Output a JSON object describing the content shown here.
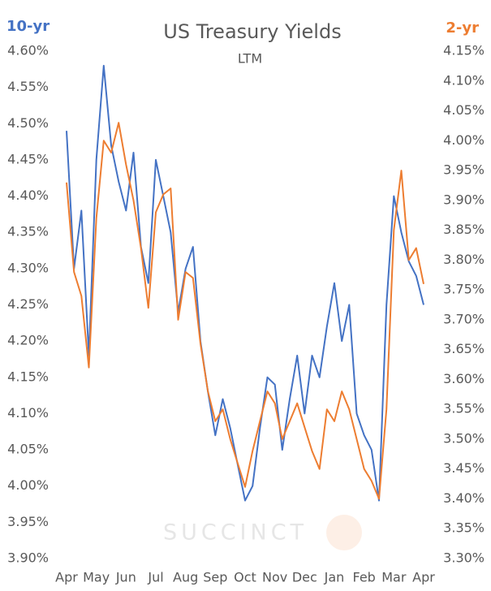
{
  "chart_data": {
    "type": "line",
    "title": "US Treasury Yields",
    "subtitle": "LTM",
    "y_axis_label": "10-yr",
    "y2_axis_label": "2-yr",
    "watermark": "SUCCINCT",
    "categories": [
      "Apr",
      null,
      null,
      null,
      "May",
      null,
      null,
      null,
      "Jun",
      null,
      null,
      null,
      "Jul",
      null,
      null,
      null,
      "Aug",
      null,
      null,
      null,
      "Sep",
      null,
      null,
      null,
      "Oct",
      null,
      null,
      null,
      "Nov",
      null,
      null,
      null,
      "Dec",
      null,
      null,
      null,
      "Jan",
      null,
      null,
      null,
      "Feb",
      null,
      null,
      null,
      "Mar",
      null,
      null,
      null,
      "Apr"
    ],
    "series": [
      {
        "name": "10-yr",
        "color": "#4472c4",
        "axis": "y",
        "values": [
          4.49,
          4.3,
          4.38,
          4.18,
          4.45,
          4.58,
          4.47,
          4.42,
          4.38,
          4.46,
          4.33,
          4.28,
          4.45,
          4.4,
          4.35,
          4.24,
          4.3,
          4.33,
          4.2,
          4.13,
          4.07,
          4.12,
          4.08,
          4.03,
          3.98,
          4.0,
          4.08,
          4.15,
          4.14,
          4.05,
          4.12,
          4.18,
          4.1,
          4.18,
          4.15,
          4.22,
          4.28,
          4.2,
          4.25,
          4.1,
          4.07,
          4.05,
          3.98,
          4.25,
          4.4,
          4.35,
          4.31,
          4.29,
          4.25
        ]
      },
      {
        "name": "2-yr",
        "color": "#ed7d31",
        "axis": "y2",
        "values": [
          3.93,
          3.78,
          3.74,
          3.62,
          3.87,
          4.0,
          3.98,
          4.03,
          3.96,
          3.9,
          3.82,
          3.72,
          3.88,
          3.91,
          3.92,
          3.7,
          3.78,
          3.77,
          3.66,
          3.58,
          3.53,
          3.55,
          3.5,
          3.46,
          3.42,
          3.48,
          3.53,
          3.58,
          3.56,
          3.5,
          3.53,
          3.56,
          3.52,
          3.48,
          3.45,
          3.55,
          3.53,
          3.58,
          3.55,
          3.5,
          3.45,
          3.43,
          3.4,
          3.55,
          3.85,
          3.95,
          3.8,
          3.82,
          3.76
        ]
      }
    ],
    "ylim": [
      3.9,
      4.6
    ],
    "yticks": [
      {
        "value": 3.9,
        "label": "3.90%"
      },
      {
        "value": 3.95,
        "label": "3.95%"
      },
      {
        "value": 4.0,
        "label": "4.00%"
      },
      {
        "value": 4.05,
        "label": "4.05%"
      },
      {
        "value": 4.1,
        "label": "4.10%"
      },
      {
        "value": 4.15,
        "label": "4.15%"
      },
      {
        "value": 4.2,
        "label": "4.20%"
      },
      {
        "value": 4.25,
        "label": "4.25%"
      },
      {
        "value": 4.3,
        "label": "4.30%"
      },
      {
        "value": 4.35,
        "label": "4.35%"
      },
      {
        "value": 4.4,
        "label": "4.40%"
      },
      {
        "value": 4.45,
        "label": "4.45%"
      },
      {
        "value": 4.5,
        "label": "4.50%"
      },
      {
        "value": 4.55,
        "label": "4.55%"
      },
      {
        "value": 4.6,
        "label": "4.60%"
      }
    ],
    "y2lim": [
      3.3,
      4.15
    ],
    "y2ticks": [
      {
        "value": 3.3,
        "label": "3.30%"
      },
      {
        "value": 3.35,
        "label": "3.35%"
      },
      {
        "value": 3.4,
        "label": "3.40%"
      },
      {
        "value": 3.45,
        "label": "3.45%"
      },
      {
        "value": 3.5,
        "label": "3.50%"
      },
      {
        "value": 3.55,
        "label": "3.55%"
      },
      {
        "value": 3.6,
        "label": "3.60%"
      },
      {
        "value": 3.65,
        "label": "3.65%"
      },
      {
        "value": 3.7,
        "label": "3.70%"
      },
      {
        "value": 3.75,
        "label": "3.75%"
      },
      {
        "value": 3.8,
        "label": "3.80%"
      },
      {
        "value": 3.85,
        "label": "3.85%"
      },
      {
        "value": 3.9,
        "label": "3.90%"
      },
      {
        "value": 3.95,
        "label": "3.95%"
      },
      {
        "value": 4.0,
        "label": "4.00%"
      },
      {
        "value": 4.05,
        "label": "4.05%"
      },
      {
        "value": 4.1,
        "label": "4.10%"
      },
      {
        "value": 4.15,
        "label": "4.15%"
      }
    ],
    "grid": false
  }
}
